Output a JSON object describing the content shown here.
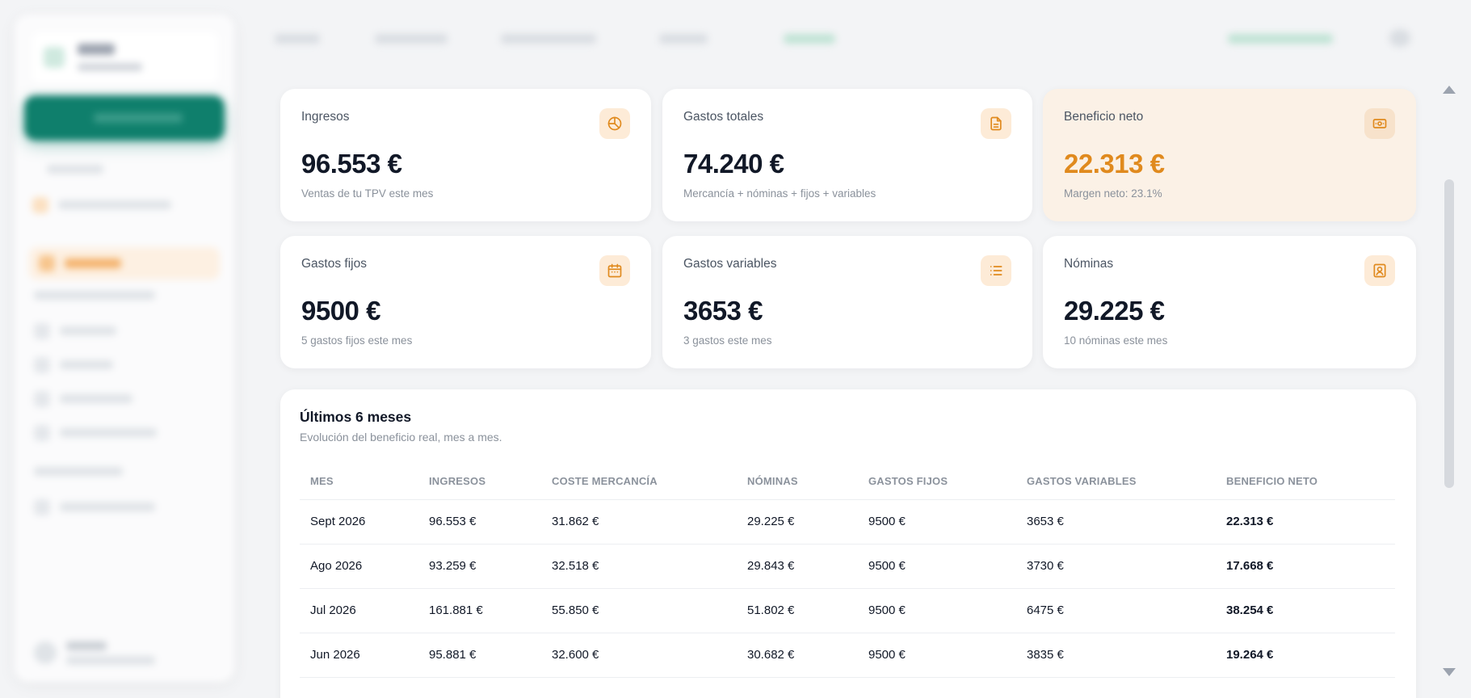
{
  "kpi_cards": [
    {
      "label": "Ingresos",
      "value": "96.553 €",
      "sub": "Ventas de tu TPV este mes",
      "icon": "pie-chart-icon"
    },
    {
      "label": "Gastos totales",
      "value": "74.240 €",
      "sub": "Mercancía + nóminas + fijos + variables",
      "icon": "document-icon"
    },
    {
      "label": "Beneficio neto",
      "value": "22.313 €",
      "sub": "Margen neto: 23.1%",
      "icon": "cash-icon",
      "highlight_color": "#e08a1e"
    },
    {
      "label": "Gastos fijos",
      "value": "9500 €",
      "sub": "5 gastos fijos este mes",
      "icon": "calendar-icon"
    },
    {
      "label": "Gastos variables",
      "value": "3653 €",
      "sub": "3 gastos este mes",
      "icon": "list-icon"
    },
    {
      "label": "Nóminas",
      "value": "29.225 €",
      "sub": "10 nóminas este mes",
      "icon": "id-badge-icon"
    }
  ],
  "history": {
    "title": "Últimos 6 meses",
    "subtitle": "Evolución del beneficio real, mes a mes.",
    "columns": [
      "MES",
      "INGRESOS",
      "COSTE MERCANCÍA",
      "NÓMINAS",
      "GASTOS FIJOS",
      "GASTOS VARIABLES",
      "BENEFICIO NETO"
    ],
    "rows": [
      [
        "Sept 2026",
        "96.553 €",
        "31.862 €",
        "29.225 €",
        "9500 €",
        "3653 €",
        "22.313 €"
      ],
      [
        "Ago 2026",
        "93.259 €",
        "32.518 €",
        "29.843 €",
        "9500 €",
        "3730 €",
        "17.668 €"
      ],
      [
        "Jul 2026",
        "161.881 €",
        "55.850 €",
        "51.802 €",
        "9500 €",
        "6475 €",
        "38.254 €"
      ],
      [
        "Jun 2026",
        "95.881 €",
        "32.600 €",
        "30.682 €",
        "9500 €",
        "3835 €",
        "19.264 €"
      ]
    ]
  },
  "colors": {
    "accent_orange": "#e08a1e",
    "brand_green": "#0f7f6c"
  }
}
